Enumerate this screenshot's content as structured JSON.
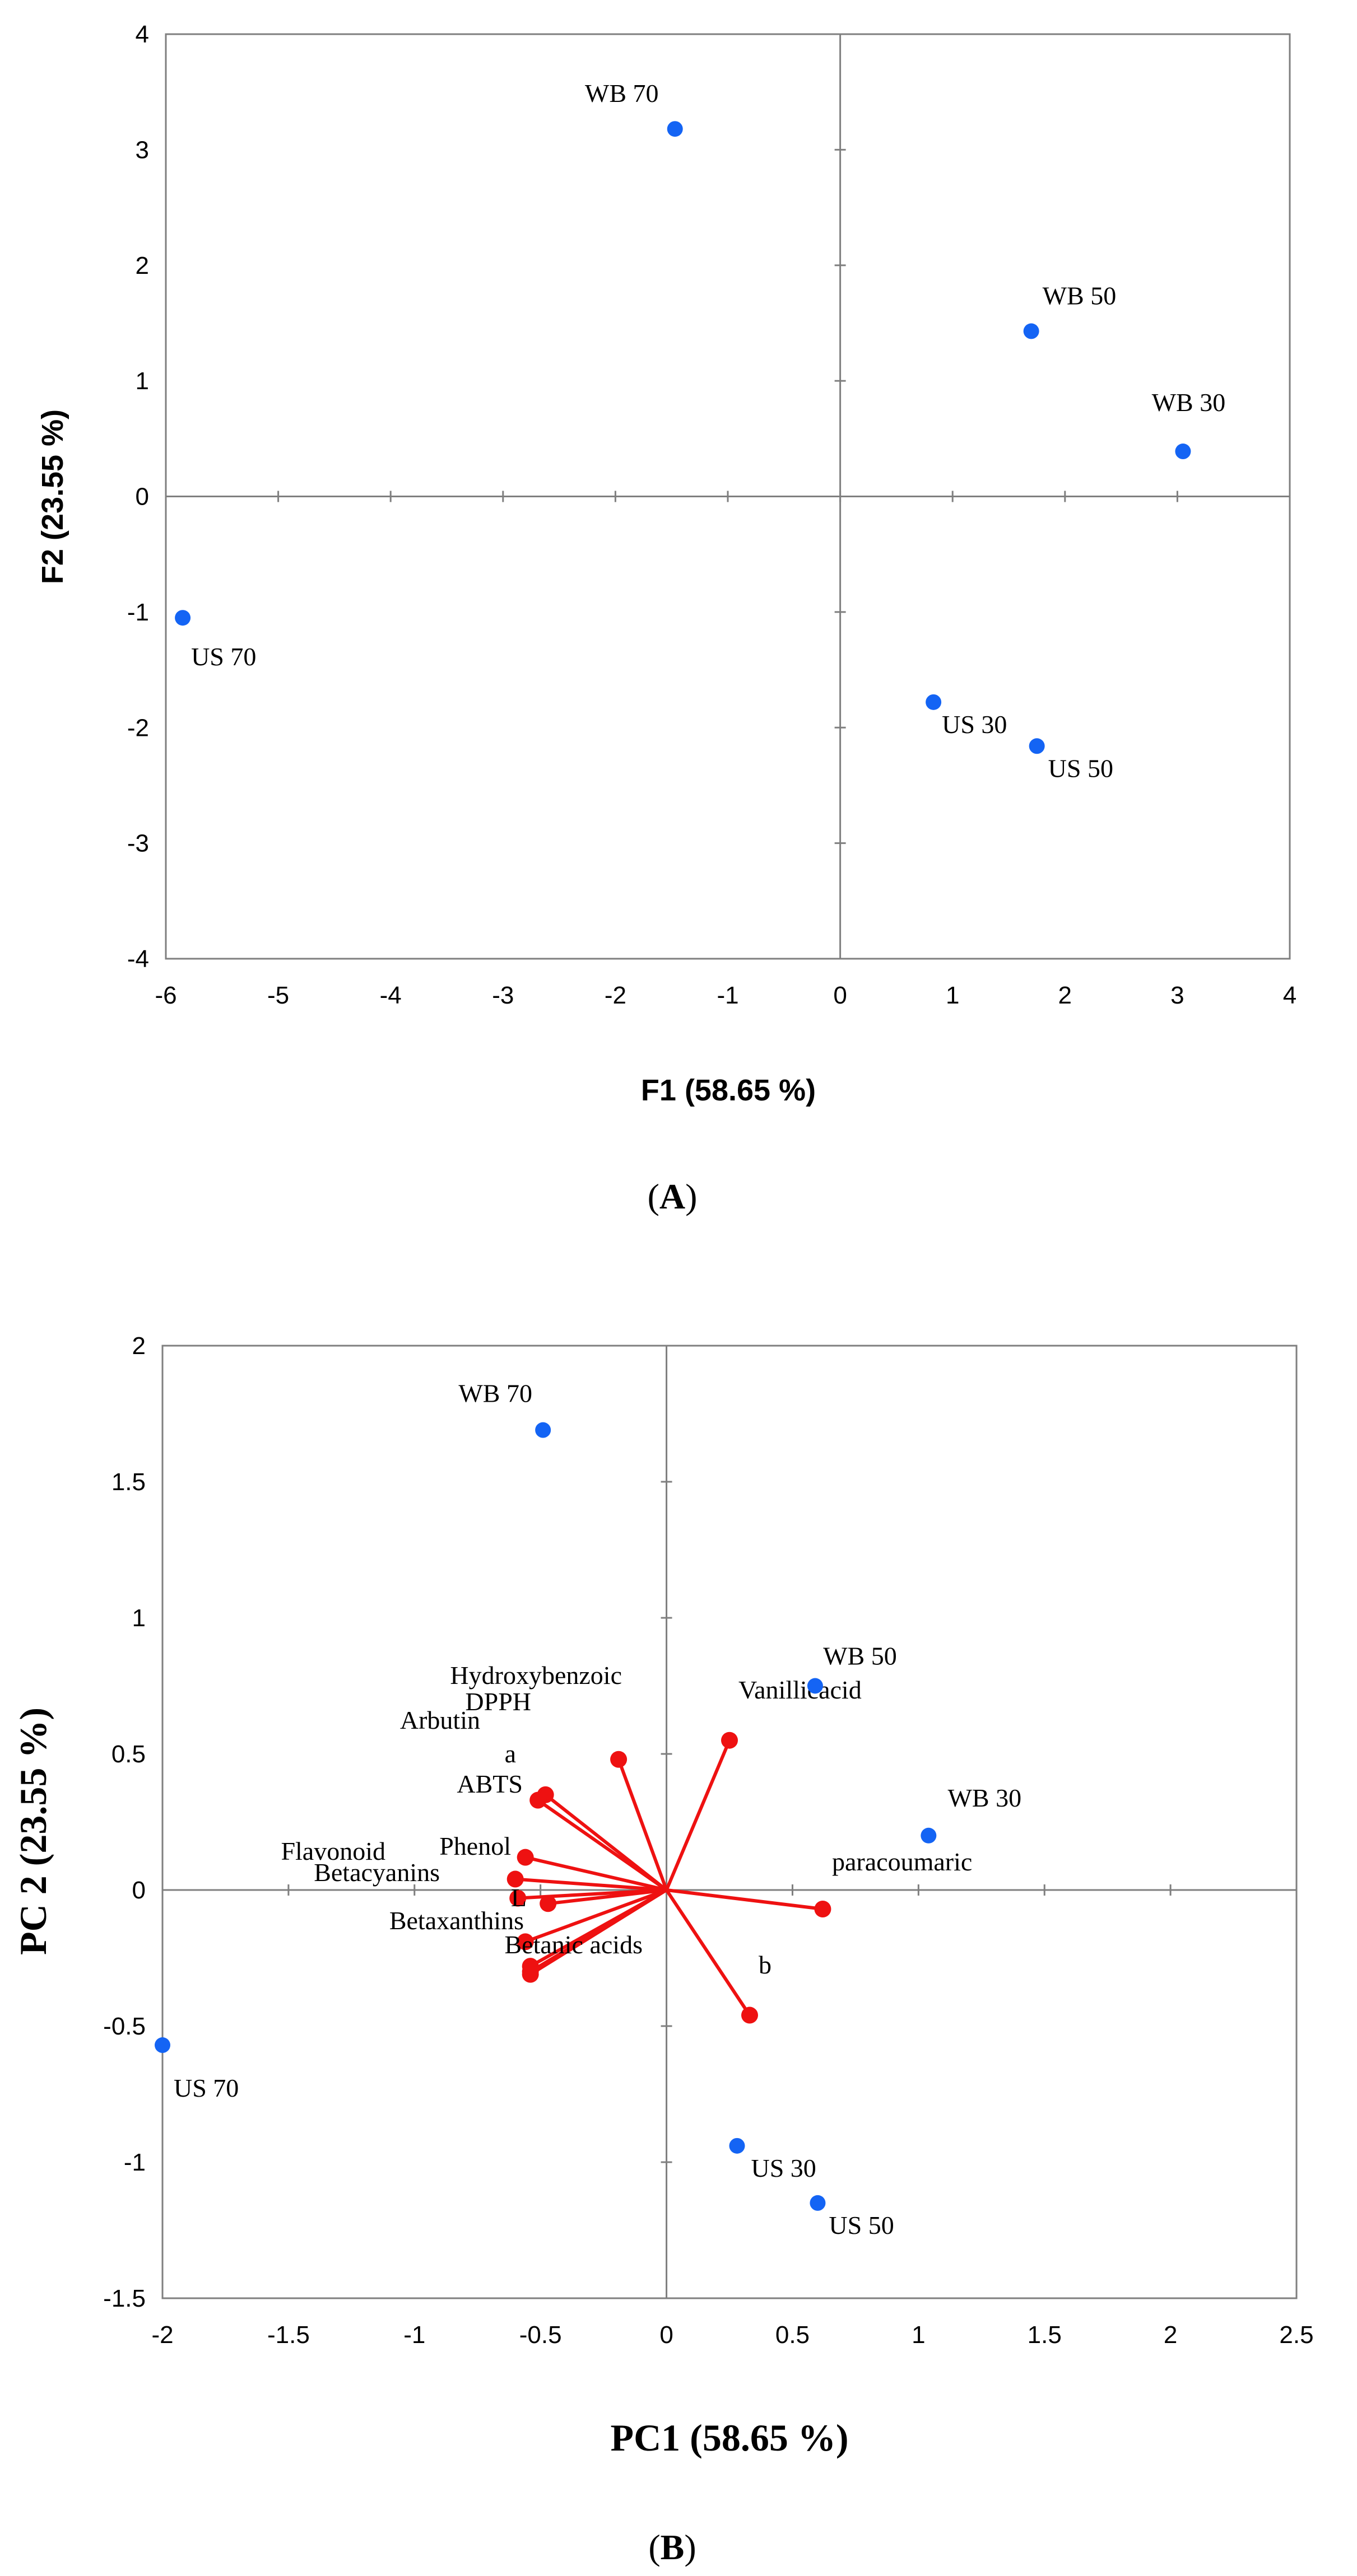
{
  "chart_data": [
    {
      "type": "scatter",
      "panel_label": "A",
      "xlabel": "F1 (58.65 %)",
      "ylabel": "F2 (23.55 %)",
      "xlim": [
        -6,
        4
      ],
      "ylim": [
        -4,
        4
      ],
      "xticks": [
        -6,
        -5,
        -4,
        -3,
        -2,
        -1,
        0,
        1,
        2,
        3,
        4
      ],
      "yticks": [
        -4,
        -3,
        -2,
        -1,
        0,
        1,
        2,
        3,
        4
      ],
      "point_color": "#1464f4",
      "points": [
        {
          "label": "WB 70",
          "x": -1.47,
          "y": 3.18
        },
        {
          "label": "WB 50",
          "x": 1.7,
          "y": 1.43
        },
        {
          "label": "WB 30",
          "x": 3.05,
          "y": 0.39
        },
        {
          "label": "US 70",
          "x": -5.85,
          "y": -1.05
        },
        {
          "label": "US 30",
          "x": 0.83,
          "y": -1.78
        },
        {
          "label": "US 50",
          "x": 1.75,
          "y": -2.16
        }
      ]
    },
    {
      "type": "scatter",
      "panel_label": "B",
      "xlabel": "PC1 (58.65 %)",
      "ylabel": "PC 2 (23.55 %)",
      "xlim": [
        -2,
        2.5
      ],
      "ylim": [
        -1.5,
        2
      ],
      "xticks": [
        -2,
        -1.5,
        -1,
        -0.5,
        0,
        0.5,
        1,
        1.5,
        2,
        2.5
      ],
      "yticks": [
        -1.5,
        -1,
        -0.5,
        0,
        0.5,
        1,
        1.5,
        2
      ],
      "point_color": "#1464f4",
      "vector_color": "#ee1111",
      "points": [
        {
          "label": "WB 70",
          "x": -0.49,
          "y": 1.69
        },
        {
          "label": "WB 50",
          "x": 0.59,
          "y": 0.75
        },
        {
          "label": "WB 30",
          "x": 1.04,
          "y": 0.2
        },
        {
          "label": "US 70",
          "x": -2.0,
          "y": -0.57
        },
        {
          "label": "US 30",
          "x": 0.28,
          "y": -0.94
        },
        {
          "label": "US 50",
          "x": 0.6,
          "y": -1.15
        }
      ],
      "vectors": [
        {
          "label": "Hydroxybenzoic",
          "x": -0.19,
          "y": 0.48
        },
        {
          "label": "DPPH",
          "x": -0.48,
          "y": 0.35
        },
        {
          "label": "Arbutin",
          "x": -0.51,
          "y": 0.33
        },
        {
          "label": "a",
          "x": -0.56,
          "y": 0.12
        },
        {
          "label": "ABTS",
          "x": -0.6,
          "y": 0.04
        },
        {
          "label": "Flavonoid",
          "x": -0.59,
          "y": -0.03
        },
        {
          "label": "Phenol",
          "x": -0.47,
          "y": -0.05
        },
        {
          "label": "Betacyanins",
          "x": -0.56,
          "y": -0.19
        },
        {
          "label": "L",
          "x": -0.54,
          "y": -0.28
        },
        {
          "label": "Betaxanthins",
          "x": -0.54,
          "y": -0.31
        },
        {
          "label": "Betanic acids",
          "x": -0.54,
          "y": -0.3
        },
        {
          "label": "Vanillicacid",
          "x": 0.25,
          "y": 0.55
        },
        {
          "label": "paracoumaric",
          "x": 0.62,
          "y": -0.07
        },
        {
          "label": "b",
          "x": 0.33,
          "y": -0.46
        }
      ]
    }
  ]
}
